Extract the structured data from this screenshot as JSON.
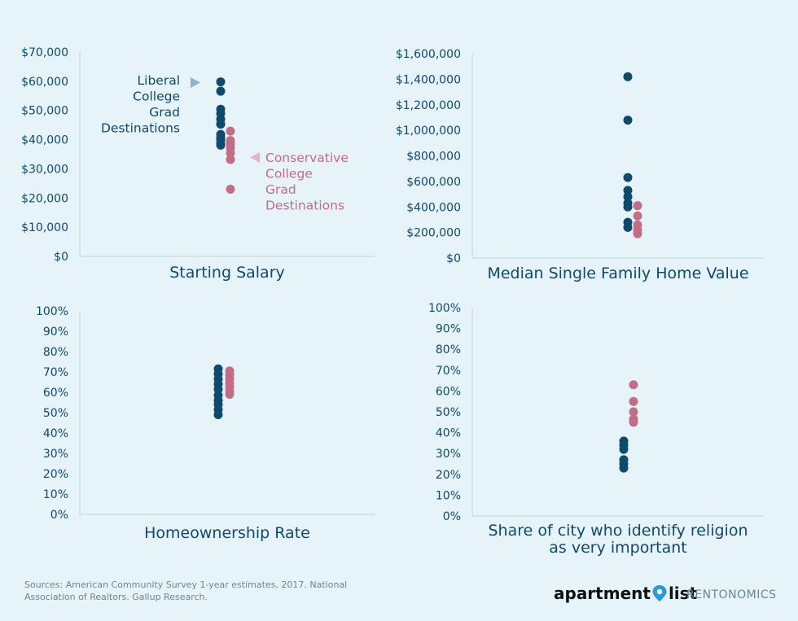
{
  "colors": {
    "liberal": "#0d4a6b",
    "conservative": "#c46b86",
    "axis": "#b9d3de",
    "background": "#e6f4f9"
  },
  "chart_data": [
    {
      "type": "scatter",
      "xlabel": "Starting Salary",
      "ylim": [
        0,
        70000
      ],
      "yticks": [
        "$0",
        "$10,000",
        "$20,000",
        "$30,000",
        "$40,000",
        "$50,000",
        "$60,000",
        "$70,000"
      ],
      "series": [
        {
          "name": "Liberal College Grad Destinations",
          "values": [
            59800,
            56600,
            50400,
            48900,
            47000,
            45300,
            41800,
            40700,
            39900,
            38700,
            38100
          ]
        },
        {
          "name": "Conservative College Grad Destinations",
          "values": [
            42900,
            39700,
            38600,
            37200,
            35400,
            33200,
            23000
          ]
        }
      ],
      "annotations": {
        "liberal": [
          "Liberal",
          "College",
          "Grad",
          "Destinations"
        ],
        "conservative": [
          "Conservative",
          "College",
          "Grad",
          "Destinations"
        ]
      }
    },
    {
      "type": "scatter",
      "xlabel": "Median Single Family Home Value",
      "ylim": [
        0,
        1600000
      ],
      "yticks": [
        "$0",
        "$200,000",
        "$400,000",
        "$600,000",
        "$800,000",
        "$1,000,000",
        "$1,200,000",
        "$1,400,000",
        "$1,600,000"
      ],
      "series": [
        {
          "values": [
            1420000,
            1080000,
            630000,
            530000,
            480000,
            430000,
            400000,
            280000,
            240000
          ]
        },
        {
          "values": [
            410000,
            330000,
            260000,
            220000,
            190000
          ]
        }
      ]
    },
    {
      "type": "scatter",
      "xlabel": "Homeownership Rate",
      "ylim": [
        0,
        100
      ],
      "yticks": [
        "0%",
        "10%",
        "20%",
        "30%",
        "40%",
        "50%",
        "60%",
        "70%",
        "80%",
        "90%",
        "100%"
      ],
      "series": [
        {
          "values": [
            71.5,
            69,
            66.5,
            64,
            61.5,
            58.5,
            56,
            54,
            51.5,
            49
          ]
        },
        {
          "values": [
            70.5,
            68.5,
            66.5,
            64.5,
            62.5,
            60.5,
            59
          ]
        }
      ]
    },
    {
      "type": "scatter",
      "xlabel": [
        "Share of city who identify religion",
        "as very important"
      ],
      "ylim": [
        0,
        100
      ],
      "yticks": [
        "0%",
        "10%",
        "20%",
        "30%",
        "40%",
        "50%",
        "60%",
        "70%",
        "80%",
        "90%",
        "100%"
      ],
      "series": [
        {
          "values": [
            36,
            34,
            32,
            27,
            25,
            23
          ]
        },
        {
          "values": [
            63,
            55,
            50,
            46.5,
            45
          ]
        }
      ]
    }
  ],
  "footer": {
    "source_line1": "Sources: American Community Survey 1-year estimates, 2017. National",
    "source_line2": "Association of Realtors. Gallup Research.",
    "brand_part1": "apartment",
    "brand_part2": "list",
    "brand_sub": "RENTONOMICS"
  }
}
